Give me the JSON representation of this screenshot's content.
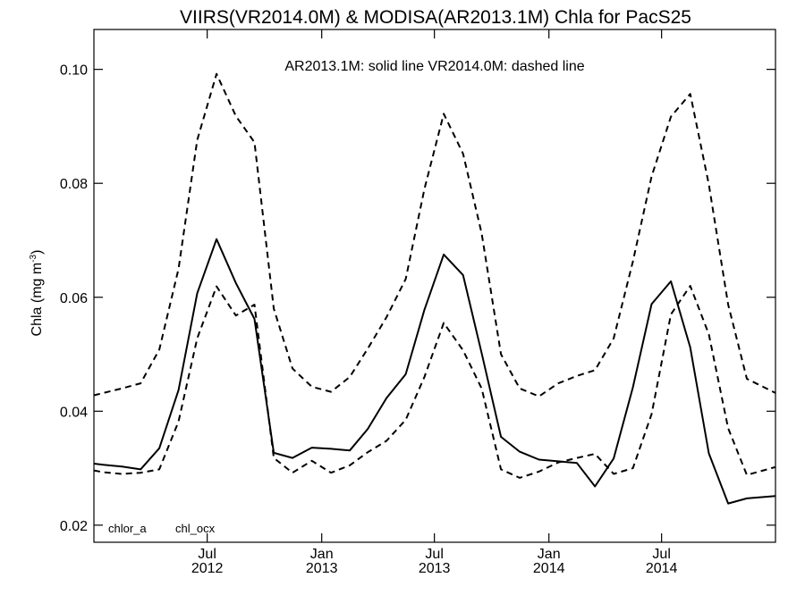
{
  "chart_data": {
    "type": "line",
    "title": "VIIRS(VR2014.0M) & MODISA(AR2013.1M)  Chla for PacS25",
    "annotation": "AR2013.1M: solid line   VR2014.0M: dashed line",
    "ylabel_main": "Chla (mg m",
    "ylabel_sup": "-3",
    "ylabel_close": ")",
    "xlabel": "",
    "ylim": [
      0.017,
      0.107
    ],
    "yticks": [
      {
        "value": 0.02,
        "label": "0.02"
      },
      {
        "value": 0.04,
        "label": "0.04"
      },
      {
        "value": 0.06,
        "label": "0.06"
      },
      {
        "value": 0.08,
        "label": "0.08"
      },
      {
        "value": 0.1,
        "label": "0.10"
      }
    ],
    "xlim": [
      "2012-01-01",
      "2014-12-31"
    ],
    "xticks": [
      {
        "date": "2012-07-01",
        "month": "Jul",
        "year": "2012"
      },
      {
        "date": "2013-01-01",
        "month": "Jan",
        "year": "2013"
      },
      {
        "date": "2013-07-01",
        "month": "Jul",
        "year": "2013"
      },
      {
        "date": "2014-01-01",
        "month": "Jan",
        "year": "2014"
      },
      {
        "date": "2014-07-01",
        "month": "Jul",
        "year": "2014"
      }
    ],
    "bottom_labels": [
      "chlor_a",
      "chl_ocx"
    ],
    "grid": false,
    "series": [
      {
        "style": "solid",
        "points": [
          [
            "2012-01-01",
            0.0308
          ],
          [
            "2012-01-16",
            0.0306
          ],
          [
            "2012-02-15",
            0.0303
          ],
          [
            "2012-03-16",
            0.0298
          ],
          [
            "2012-04-15",
            0.0335
          ],
          [
            "2012-05-16",
            0.0437
          ],
          [
            "2012-06-15",
            0.0607
          ],
          [
            "2012-07-16",
            0.0702
          ],
          [
            "2012-08-16",
            0.0625
          ],
          [
            "2012-09-15",
            0.0562
          ],
          [
            "2012-10-16",
            0.0327
          ],
          [
            "2012-11-15",
            0.0318
          ],
          [
            "2012-12-16",
            0.0336
          ],
          [
            "2013-01-16",
            0.0334
          ],
          [
            "2013-02-15",
            0.0331
          ],
          [
            "2013-03-16",
            0.0369
          ],
          [
            "2013-04-15",
            0.0423
          ],
          [
            "2013-05-16",
            0.0465
          ],
          [
            "2013-06-15",
            0.0578
          ],
          [
            "2013-07-16",
            0.0675
          ],
          [
            "2013-08-16",
            0.0639
          ],
          [
            "2013-09-15",
            0.0502
          ],
          [
            "2013-10-16",
            0.0355
          ],
          [
            "2013-11-15",
            0.0329
          ],
          [
            "2013-12-16",
            0.0315
          ],
          [
            "2014-01-16",
            0.0312
          ],
          [
            "2014-02-15",
            0.0309
          ],
          [
            "2014-03-16",
            0.0268
          ],
          [
            "2014-04-15",
            0.0317
          ],
          [
            "2014-05-16",
            0.0442
          ],
          [
            "2014-06-15",
            0.0588
          ],
          [
            "2014-07-16",
            0.0628
          ],
          [
            "2014-08-16",
            0.0512
          ],
          [
            "2014-09-15",
            0.0326
          ],
          [
            "2014-10-16",
            0.0238
          ],
          [
            "2014-11-15",
            0.0247
          ],
          [
            "2014-12-31",
            0.0251
          ]
        ]
      },
      {
        "style": "dashed",
        "points": [
          [
            "2012-01-01",
            0.0428
          ],
          [
            "2012-01-16",
            0.0432
          ],
          [
            "2012-02-15",
            0.044
          ],
          [
            "2012-03-16",
            0.0449
          ],
          [
            "2012-04-15",
            0.0508
          ],
          [
            "2012-05-16",
            0.065
          ],
          [
            "2012-06-15",
            0.0876
          ],
          [
            "2012-07-16",
            0.0992
          ],
          [
            "2012-08-16",
            0.0918
          ],
          [
            "2012-09-15",
            0.0872
          ],
          [
            "2012-10-16",
            0.058
          ],
          [
            "2012-11-15",
            0.0475
          ],
          [
            "2012-12-16",
            0.0443
          ],
          [
            "2013-01-16",
            0.0434
          ],
          [
            "2013-02-15",
            0.046
          ],
          [
            "2013-03-16",
            0.051
          ],
          [
            "2013-04-15",
            0.0565
          ],
          [
            "2013-05-16",
            0.0632
          ],
          [
            "2013-06-15",
            0.079
          ],
          [
            "2013-07-16",
            0.0922
          ],
          [
            "2013-08-16",
            0.0852
          ],
          [
            "2013-09-15",
            0.0712
          ],
          [
            "2013-10-16",
            0.05
          ],
          [
            "2013-11-15",
            0.044
          ],
          [
            "2013-12-16",
            0.0426
          ],
          [
            "2014-01-16",
            0.0449
          ],
          [
            "2014-02-15",
            0.0462
          ],
          [
            "2014-03-16",
            0.0472
          ],
          [
            "2014-04-15",
            0.0528
          ],
          [
            "2014-05-16",
            0.0663
          ],
          [
            "2014-06-15",
            0.0812
          ],
          [
            "2014-07-16",
            0.0917
          ],
          [
            "2014-08-16",
            0.0957
          ],
          [
            "2014-09-15",
            0.0798
          ],
          [
            "2014-10-16",
            0.0587
          ],
          [
            "2014-11-15",
            0.0457
          ],
          [
            "2014-12-31",
            0.0432
          ]
        ]
      },
      {
        "style": "dashed",
        "points": [
          [
            "2012-01-01",
            0.0296
          ],
          [
            "2012-01-16",
            0.0293
          ],
          [
            "2012-02-15",
            0.029
          ],
          [
            "2012-03-16",
            0.0292
          ],
          [
            "2012-04-15",
            0.0298
          ],
          [
            "2012-05-16",
            0.0382
          ],
          [
            "2012-06-15",
            0.0528
          ],
          [
            "2012-07-16",
            0.0619
          ],
          [
            "2012-08-16",
            0.0568
          ],
          [
            "2012-09-15",
            0.0587
          ],
          [
            "2012-10-16",
            0.0318
          ],
          [
            "2012-11-15",
            0.0292
          ],
          [
            "2012-12-16",
            0.0313
          ],
          [
            "2013-01-16",
            0.0292
          ],
          [
            "2013-02-15",
            0.0305
          ],
          [
            "2013-03-16",
            0.0328
          ],
          [
            "2013-04-15",
            0.0348
          ],
          [
            "2013-05-16",
            0.0385
          ],
          [
            "2013-06-15",
            0.046
          ],
          [
            "2013-07-16",
            0.0555
          ],
          [
            "2013-08-16",
            0.0507
          ],
          [
            "2013-09-15",
            0.044
          ],
          [
            "2013-10-16",
            0.0298
          ],
          [
            "2013-11-15",
            0.0283
          ],
          [
            "2013-12-16",
            0.0294
          ],
          [
            "2014-01-16",
            0.031
          ],
          [
            "2014-02-15",
            0.0318
          ],
          [
            "2014-03-16",
            0.0325
          ],
          [
            "2014-04-15",
            0.029
          ],
          [
            "2014-05-16",
            0.03
          ],
          [
            "2014-06-15",
            0.0395
          ],
          [
            "2014-07-16",
            0.057
          ],
          [
            "2014-08-16",
            0.062
          ],
          [
            "2014-09-15",
            0.0535
          ],
          [
            "2014-10-16",
            0.037
          ],
          [
            "2014-11-15",
            0.0288
          ],
          [
            "2014-12-31",
            0.0302
          ]
        ]
      }
    ]
  }
}
